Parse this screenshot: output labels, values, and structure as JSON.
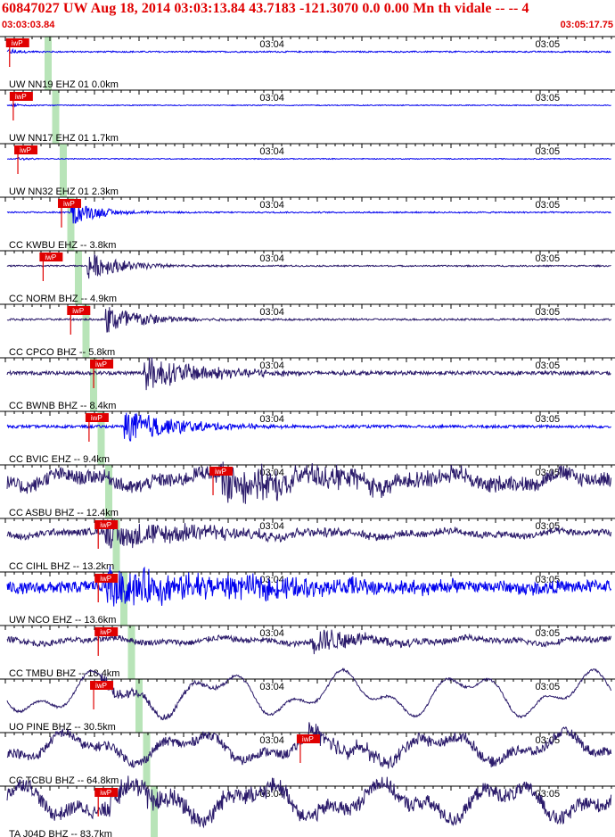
{
  "header": {
    "title": "60847027 UW Aug 18, 2014 03:03:13.84   43.7183 -121.3070  0.0 0.00 Mn th vidale -- --   4",
    "start_time": "03:03:03.84",
    "end_time": "03:05:17.75"
  },
  "chart_data": {
    "type": "line",
    "title": "60847027 UW Aug 18, 2014 03:03:13.84   43.7183 -121.3070  0.0 0.00 Mn th vidale -- --   4",
    "x_range_seconds": [
      0,
      133.91
    ],
    "tick_labels": [
      "03:04",
      "03:05"
    ],
    "tick_times_s": [
      56.16,
      116.16
    ],
    "pick_label": "iwP",
    "grid": false,
    "series": [
      {
        "name": "UW NN19 EHZ 01 0.0km",
        "color": "#0000ee",
        "pick_s": 1.7,
        "onset_s": 1.7,
        "end_s": 133.9,
        "amp": 0.15,
        "noise": 0.03,
        "decay": 3,
        "lowfreq": 0.0
      },
      {
        "name": "UW NN17 EHZ 01 1.7km",
        "color": "#0000ee",
        "pick_s": 2.5,
        "onset_s": 2.5,
        "end_s": 133.9,
        "amp": 0.08,
        "noise": 0.02,
        "decay": 3,
        "lowfreq": 0.0
      },
      {
        "name": "UW NN32 EHZ 01 2.3km",
        "color": "#0000ee",
        "pick_s": 3.5,
        "onset_s": 3.5,
        "end_s": 133.9,
        "amp": 0.06,
        "noise": 0.02,
        "decay": 3,
        "lowfreq": 0.0
      },
      {
        "name": "CC KWBU EHZ -- 3.8km",
        "color": "#0000ee",
        "pick_s": 13.0,
        "onset_s": 15.5,
        "end_s": 133.9,
        "amp": 0.55,
        "noise": 0.03,
        "decay": 6,
        "lowfreq": 0.0
      },
      {
        "name": "CC NORM BHZ -- 4.9km",
        "color": "#2a1a6a",
        "pick_s": 9.0,
        "onset_s": 19.0,
        "end_s": 133.9,
        "amp": 0.6,
        "noise": 0.03,
        "decay": 8,
        "lowfreq": 0.0
      },
      {
        "name": "CC CPCO BHZ -- 5.8km",
        "color": "#2a1a6a",
        "pick_s": 15.0,
        "onset_s": 23.0,
        "end_s": 133.9,
        "amp": 0.7,
        "noise": 0.04,
        "decay": 9,
        "lowfreq": 0.0
      },
      {
        "name": "CC BWNB BHZ -- 8.4km",
        "color": "#2a1a6a",
        "pick_s": 20.0,
        "onset_s": 31.0,
        "end_s": 133.9,
        "amp": 0.75,
        "noise": 0.08,
        "decay": 14,
        "lowfreq": 0.0
      },
      {
        "name": "CC BVIC EHZ -- 9.4km",
        "color": "#0000ee",
        "pick_s": 19.0,
        "onset_s": 27.0,
        "end_s": 133.9,
        "amp": 0.75,
        "noise": 0.06,
        "decay": 12,
        "lowfreq": 0.0
      },
      {
        "name": "CC ASBU BHZ -- 12.4km",
        "color": "#2a1a6a",
        "pick_s": 46.0,
        "onset_s": 48.0,
        "end_s": 133.9,
        "amp": 0.75,
        "noise": 0.3,
        "decay": 30,
        "lowfreq": 0.25
      },
      {
        "name": "CC CIHL BHZ -- 13.2km",
        "color": "#2a1a6a",
        "pick_s": 21.0,
        "onset_s": 23.0,
        "end_s": 133.9,
        "amp": 0.6,
        "noise": 0.14,
        "decay": 25,
        "lowfreq": 0.1
      },
      {
        "name": "UW NCO EHZ -- 13.6km",
        "color": "#0000ee",
        "pick_s": 21.0,
        "onset_s": 23.0,
        "end_s": 133.9,
        "amp": 0.8,
        "noise": 0.25,
        "decay": 40,
        "lowfreq": 0.05
      },
      {
        "name": "CC TMBU BHZ -- 18.4km",
        "color": "#2a1a6a",
        "pick_s": 21.0,
        "onset_s": 68.0,
        "end_s": 133.9,
        "amp": 0.6,
        "noise": 0.12,
        "decay": 12,
        "lowfreq": 0.1
      },
      {
        "name": "UO PINE BHZ -- 30.5km",
        "color": "#2a1a6a",
        "pick_s": 20.0,
        "onset_s": 22.0,
        "end_s": 138.0,
        "amp": 0.3,
        "noise": 0.05,
        "decay": 15,
        "lowfreq": 0.75
      },
      {
        "name": "CC TCBU BHZ -- 64.8km",
        "color": "#2a1a6a",
        "pick_s": 65.0,
        "onset_s": 67.0,
        "end_s": 143.0,
        "amp": 0.4,
        "noise": 0.2,
        "decay": 20,
        "lowfreq": 0.5
      },
      {
        "name": "TA J04D BHZ -- 83.7km",
        "color": "#2a1a6a",
        "pick_s": 21.0,
        "onset_s": 23.0,
        "end_s": 146.0,
        "amp": 0.45,
        "noise": 0.3,
        "decay": 30,
        "lowfreq": 0.6
      }
    ]
  }
}
